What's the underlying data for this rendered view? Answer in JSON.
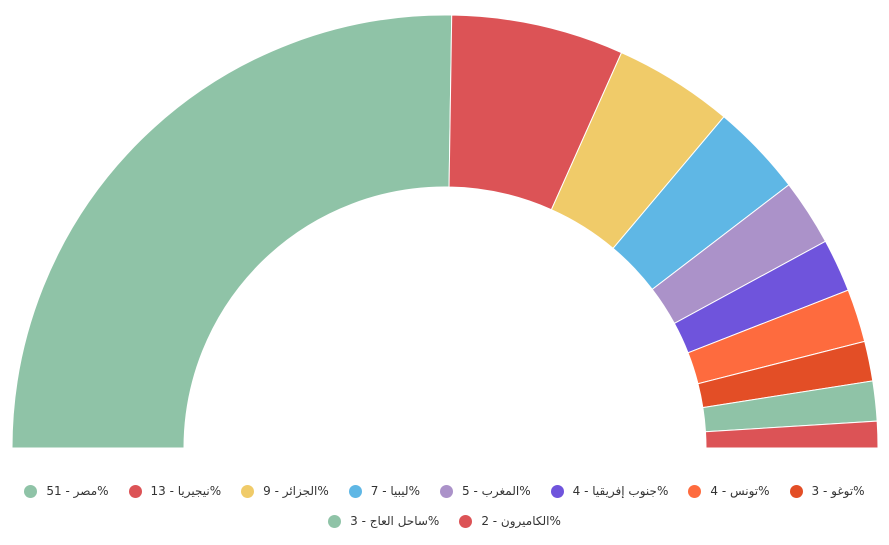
{
  "chart_data": {
    "type": "pie",
    "variant": "semi-donut",
    "title": "",
    "legend_position": "bottom",
    "slices": [
      {
        "label": "مصر - 51%",
        "value": 51,
        "color": "#8fc3a7"
      },
      {
        "label": "نيجيريا - 13%",
        "value": 13,
        "color": "#dc5356"
      },
      {
        "label": "الجزائر - 9%",
        "value": 9,
        "color": "#f0cb69"
      },
      {
        "label": "ليبيا - 7%",
        "value": 7,
        "color": "#5fb7e5"
      },
      {
        "label": "المغرب - 5%",
        "value": 5,
        "color": "#ab92c9"
      },
      {
        "label": "جنوب إفريقيا - 4%",
        "value": 4,
        "color": "#6f54dc"
      },
      {
        "label": "تونس - 4%",
        "value": 4,
        "color": "#fe6b3e"
      },
      {
        "label": "توغو - 3%",
        "value": 3,
        "color": "#e34e26"
      },
      {
        "label": "ساحل العاج - 3%",
        "value": 3,
        "color": "#8fc3a7"
      },
      {
        "label": "الكاميرون - 2%",
        "value": 2,
        "color": "#dc5356"
      }
    ]
  }
}
